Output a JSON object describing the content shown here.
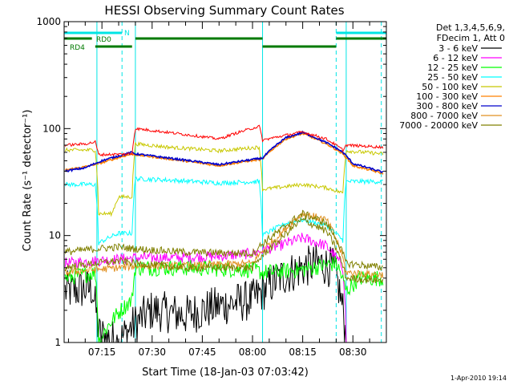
{
  "chart_data": {
    "type": "line",
    "title": "HESSI Observing Summary Count Rates",
    "xlabel": "Start Time (18-Jan-03 07:03:42)",
    "ylabel": "Count Rate (s⁻¹ detector⁻¹)",
    "yscale": "log",
    "ylim": [
      1,
      1000
    ],
    "xlim": [
      "07:03:42",
      "08:40:00"
    ],
    "x_ticks": [
      "07:15",
      "07:30",
      "07:45",
      "08:00",
      "08:15",
      "08:30"
    ],
    "y_ticks": [
      "1",
      "10",
      "100",
      "1000"
    ],
    "grid": false,
    "legend_position": "right",
    "legend_header": [
      "Det 1,3,4,5,6,9,",
      "FDecim 1, Att 0"
    ],
    "timestamp": "1-Apr-2010 19:14",
    "flags": [
      {
        "label": "N",
        "color": "#00e5e5",
        "segments": [
          [
            "07:03:42",
            "07:21:00"
          ],
          [
            "08:25:00",
            "08:40:00"
          ]
        ]
      },
      {
        "label": "RD0",
        "color": "#007a00",
        "segments": [
          [
            "07:03:42",
            "07:12:00"
          ],
          [
            "07:25:00",
            "08:03:00"
          ],
          [
            "08:25:00",
            "08:40:00"
          ]
        ]
      },
      {
        "label": "RD4",
        "color": "#007a00",
        "segments": [
          [
            "07:13:00",
            "07:24:00"
          ],
          [
            "08:03:00",
            "08:25:00"
          ]
        ]
      }
    ],
    "vlines_solid": [
      "07:03:42",
      "07:13:30",
      "07:25:00",
      "08:03:00",
      "08:28:00"
    ],
    "vlines_dashed": [
      "07:21:00",
      "08:25:00",
      "08:38:30"
    ],
    "series": [
      {
        "name": "3 - 6 keV",
        "color": "#000000",
        "x": [
          "07:04",
          "07:12",
          "07:14",
          "07:20",
          "07:25",
          "07:30",
          "07:40",
          "07:50",
          "08:00",
          "08:03",
          "08:08",
          "08:15",
          "08:20",
          "08:24",
          "08:27",
          "08:28"
        ],
        "y": [
          3.0,
          3.2,
          1.2,
          1.0,
          1.5,
          2.0,
          1.8,
          2.2,
          2.5,
          3.0,
          4.0,
          5.0,
          5.5,
          5.0,
          2.0,
          1.0
        ]
      },
      {
        "name": "6 - 12 keV",
        "color": "#ff00ff",
        "x": [
          "07:04",
          "07:13",
          "07:20",
          "07:25",
          "07:35",
          "07:50",
          "08:00",
          "08:08",
          "08:15",
          "08:22",
          "08:27",
          "08:28"
        ],
        "y": [
          5.5,
          5.8,
          6.0,
          6.2,
          6.2,
          6.4,
          6.8,
          8.0,
          9.5,
          8.0,
          5.0,
          1.0
        ]
      },
      {
        "name": "12 - 25 keV",
        "color": "#00ff00",
        "x": [
          "07:04",
          "07:13",
          "07:14",
          "07:24",
          "07:25",
          "07:40",
          "08:00",
          "08:03",
          "08:15",
          "08:25",
          "08:28",
          "08:32",
          "08:39"
        ],
        "y": [
          4.0,
          4.5,
          1.0,
          2.5,
          5.0,
          5.0,
          4.8,
          4.5,
          4.8,
          5.5,
          3.0,
          4.0,
          4.0
        ]
      },
      {
        "name": "25 - 50 keV",
        "color": "#00ffff",
        "x": [
          "07:04",
          "07:13",
          "07:14",
          "07:20",
          "07:24",
          "07:25",
          "07:35",
          "07:50",
          "08:02",
          "08:03",
          "08:10",
          "08:15",
          "08:22",
          "08:27",
          "08:28",
          "08:39"
        ],
        "y": [
          30,
          30,
          8.5,
          10.5,
          10.5,
          34,
          33,
          31,
          32,
          10,
          13,
          14,
          12.5,
          9,
          32,
          32
        ]
      },
      {
        "name": "50 - 100 keV",
        "color": "#c8c800",
        "x": [
          "07:04",
          "07:13",
          "07:14",
          "07:18",
          "07:20",
          "07:24",
          "07:25",
          "07:35",
          "07:50",
          "08:02",
          "08:03",
          "08:15",
          "08:22",
          "08:27",
          "08:28",
          "08:39"
        ],
        "y": [
          63,
          63,
          16,
          16,
          23,
          23,
          72,
          67,
          62,
          67,
          27,
          30,
          28,
          25,
          62,
          58
        ]
      },
      {
        "name": "100 - 300 keV",
        "color": "#ff8000",
        "x": [
          "07:04",
          "07:10",
          "07:15",
          "07:24",
          "07:25",
          "07:35",
          "07:50",
          "08:03",
          "08:10",
          "08:15",
          "08:22",
          "08:27",
          "08:30",
          "08:39"
        ],
        "y": [
          41,
          44,
          48,
          58,
          57,
          52,
          45,
          52,
          80,
          90,
          72,
          58,
          45,
          38
        ]
      },
      {
        "name": "300 - 800 keV",
        "color": "#0000cc",
        "x": [
          "07:04",
          "07:10",
          "07:15",
          "07:24",
          "07:25",
          "07:35",
          "07:50",
          "08:03",
          "08:10",
          "08:15",
          "08:22",
          "08:27",
          "08:30",
          "08:39"
        ],
        "y": [
          40,
          43,
          50,
          60,
          58,
          53,
          46,
          53,
          82,
          92,
          74,
          60,
          47,
          39
        ]
      },
      {
        "name": "800 - 7000 keV",
        "color": "#e09020",
        "x": [
          "07:04",
          "07:13",
          "07:20",
          "07:25",
          "07:40",
          "08:00",
          "08:08",
          "08:15",
          "08:22",
          "08:28",
          "08:39"
        ],
        "y": [
          4.5,
          4.8,
          5.0,
          5.2,
          5.2,
          5.5,
          10,
          16,
          14,
          4.5,
          4.3
        ]
      },
      {
        "name": "7000 - 20000 keV",
        "color": "#808000",
        "x": [
          "07:04",
          "07:13",
          "07:20",
          "07:25",
          "07:40",
          "08:00",
          "08:08",
          "08:15",
          "08:22",
          "08:28",
          "08:39"
        ],
        "y": [
          7.0,
          7.5,
          7.8,
          7.5,
          7.0,
          6.8,
          11,
          16,
          13,
          5.5,
          5.0
        ],
        "y2": [
          5.0,
          5.5,
          5.8,
          5.5,
          5.0,
          5.0,
          9,
          14,
          11,
          4.0,
          3.8
        ]
      },
      {
        "name": "",
        "color": "#ff0000",
        "x": [
          "07:04",
          "07:10",
          "07:13",
          "07:14",
          "07:24",
          "07:25",
          "07:35",
          "07:50",
          "08:02",
          "08:03",
          "08:15",
          "08:22",
          "08:27",
          "08:28",
          "08:39"
        ],
        "y": [
          70,
          72,
          75,
          57,
          58,
          100,
          92,
          80,
          105,
          78,
          93,
          80,
          63,
          70,
          67
        ]
      }
    ]
  }
}
